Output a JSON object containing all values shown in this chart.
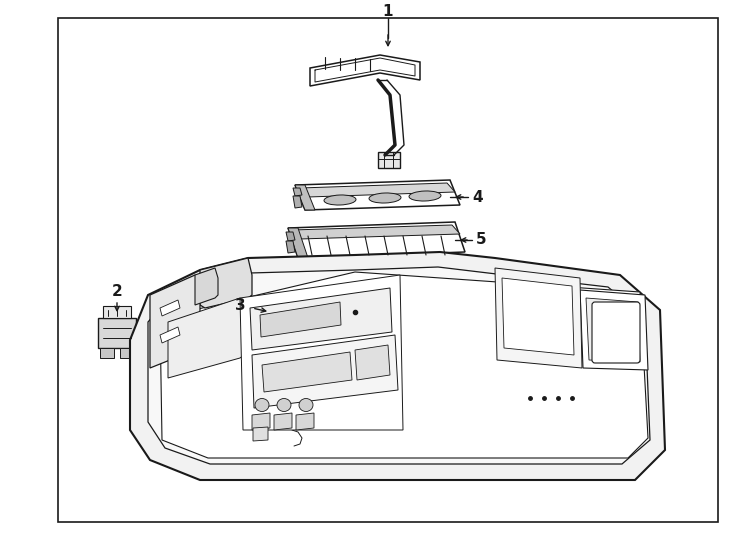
{
  "background_color": "#ffffff",
  "line_color": "#1a1a1a",
  "fig_width": 7.34,
  "fig_height": 5.4,
  "dpi": 100
}
